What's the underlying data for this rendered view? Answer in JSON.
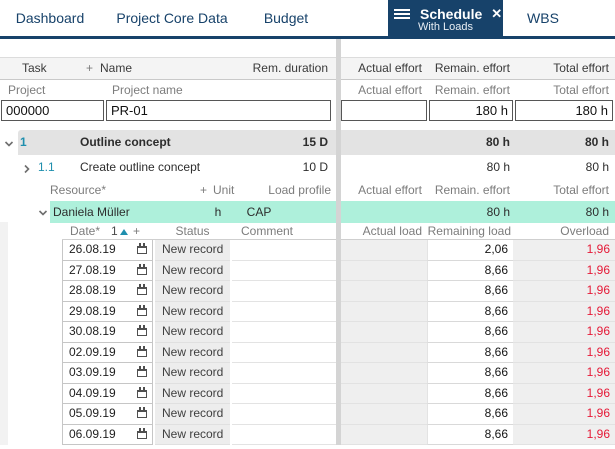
{
  "tabs": {
    "items": [
      {
        "label": "Dashboard"
      },
      {
        "label": "Project Core Data"
      },
      {
        "label": "Budget"
      },
      {
        "label": "Schedule",
        "subtitle": "With Loads"
      },
      {
        "label": "WBS"
      }
    ],
    "close_glyph": "✕"
  },
  "colors": {
    "navy": "#17426a",
    "teal": "#1f8fae",
    "mint": "#aef0db",
    "red": "#e51937"
  },
  "project_table": {
    "headers": {
      "task": "Task",
      "plus": "+",
      "name": "Name",
      "rem_duration": "Rem. duration",
      "actual_effort": "Actual effort",
      "remain_effort": "Remain. effort",
      "total_effort": "Total effort"
    },
    "subheaders": {
      "project": "Project",
      "project_name": "Project name",
      "actual_effort": "Actual effort",
      "remain_effort": "Remain. effort",
      "total_effort": "Total effort"
    },
    "input_row": {
      "task_id": "000000",
      "name": "PR-01",
      "actual_effort": "",
      "remain_effort": "180 h",
      "total_effort": "180 h"
    }
  },
  "tasks": [
    {
      "wbs": "1",
      "name": "Outline concept",
      "rem_duration": "15 D",
      "actual_effort": "",
      "remain_effort": "80 h",
      "total_effort": "80 h"
    },
    {
      "wbs": "1.1",
      "name": "Create outline concept",
      "rem_duration": "10 D",
      "actual_effort": "",
      "remain_effort": "80 h",
      "total_effort": "80 h"
    }
  ],
  "resource_section": {
    "headers": {
      "resource": "Resource*",
      "plus": "+",
      "unit": "Unit",
      "load_profile": "Load profile",
      "actual_effort": "Actual effort",
      "remain_effort": "Remain. effort",
      "total_effort": "Total effort"
    },
    "resource_row": {
      "name": "Daniela Müller",
      "unit": "h",
      "load_profile": "CAP",
      "actual_effort": "",
      "remain_effort": "80 h",
      "total_effort": "80 h"
    }
  },
  "load_section": {
    "headers": {
      "date": "Date*",
      "sort_number": "1",
      "plus": "+",
      "status": "Status",
      "comment": "Comment",
      "actual_load": "Actual load",
      "remaining_load": "Remaining load",
      "overload": "Overload"
    },
    "rows": [
      {
        "date": "26.08.19",
        "status": "New record",
        "comment": "",
        "actual_load": "",
        "remaining_load": "2,06",
        "overload": "1,96"
      },
      {
        "date": "27.08.19",
        "status": "New record",
        "comment": "",
        "actual_load": "",
        "remaining_load": "8,66",
        "overload": "1,96"
      },
      {
        "date": "28.08.19",
        "status": "New record",
        "comment": "",
        "actual_load": "",
        "remaining_load": "8,66",
        "overload": "1,96"
      },
      {
        "date": "29.08.19",
        "status": "New record",
        "comment": "",
        "actual_load": "",
        "remaining_load": "8,66",
        "overload": "1,96"
      },
      {
        "date": "30.08.19",
        "status": "New record",
        "comment": "",
        "actual_load": "",
        "remaining_load": "8,66",
        "overload": "1,96"
      },
      {
        "date": "02.09.19",
        "status": "New record",
        "comment": "",
        "actual_load": "",
        "remaining_load": "8,66",
        "overload": "1,96"
      },
      {
        "date": "03.09.19",
        "status": "New record",
        "comment": "",
        "actual_load": "",
        "remaining_load": "8,66",
        "overload": "1,96"
      },
      {
        "date": "04.09.19",
        "status": "New record",
        "comment": "",
        "actual_load": "",
        "remaining_load": "8,66",
        "overload": "1,96"
      },
      {
        "date": "05.09.19",
        "status": "New record",
        "comment": "",
        "actual_load": "",
        "remaining_load": "8,66",
        "overload": "1,96"
      },
      {
        "date": "06.09.19",
        "status": "New record",
        "comment": "",
        "actual_load": "",
        "remaining_load": "8,66",
        "overload": "1,96"
      }
    ]
  }
}
